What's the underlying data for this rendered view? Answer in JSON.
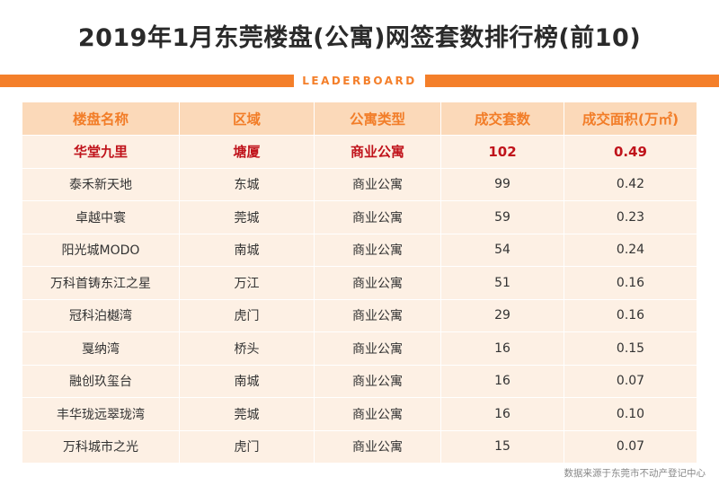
{
  "header": {
    "title": "2019年1月东莞楼盘(公寓)网签套数排行榜(前10)",
    "band_label": "LEADERBOARD"
  },
  "chart_data": {
    "type": "table",
    "columns": [
      "楼盘名称",
      "区域",
      "公寓类型",
      "成交套数",
      "成交面积(万㎡)"
    ],
    "rows": [
      [
        "华堂九里",
        "塘厦",
        "商业公寓",
        "102",
        "0.49"
      ],
      [
        "泰禾新天地",
        "东城",
        "商业公寓",
        "99",
        "0.42"
      ],
      [
        "卓越中寰",
        "莞城",
        "商业公寓",
        "59",
        "0.23"
      ],
      [
        "阳光城MODO",
        "南城",
        "商业公寓",
        "54",
        "0.24"
      ],
      [
        "万科首铸东江之星",
        "万江",
        "商业公寓",
        "51",
        "0.16"
      ],
      [
        "冠科泊樾湾",
        "虎门",
        "商业公寓",
        "29",
        "0.16"
      ],
      [
        "戛纳湾",
        "桥头",
        "商业公寓",
        "16",
        "0.15"
      ],
      [
        "融创玖玺台",
        "南城",
        "商业公寓",
        "16",
        "0.07"
      ],
      [
        "丰华珑远翠珑湾",
        "莞城",
        "商业公寓",
        "16",
        "0.10"
      ],
      [
        "万科城市之光",
        "虎门",
        "商业公寓",
        "15",
        "0.07"
      ]
    ],
    "highlight_row": 0,
    "colors": {
      "accent": "#f47f2a",
      "header_bg": "#fbd9b9",
      "row_bg": "#fdf0e4",
      "highlight_text": "#c0131b"
    }
  },
  "footer": {
    "source": "数据来源于东莞市不动产登记中心"
  }
}
